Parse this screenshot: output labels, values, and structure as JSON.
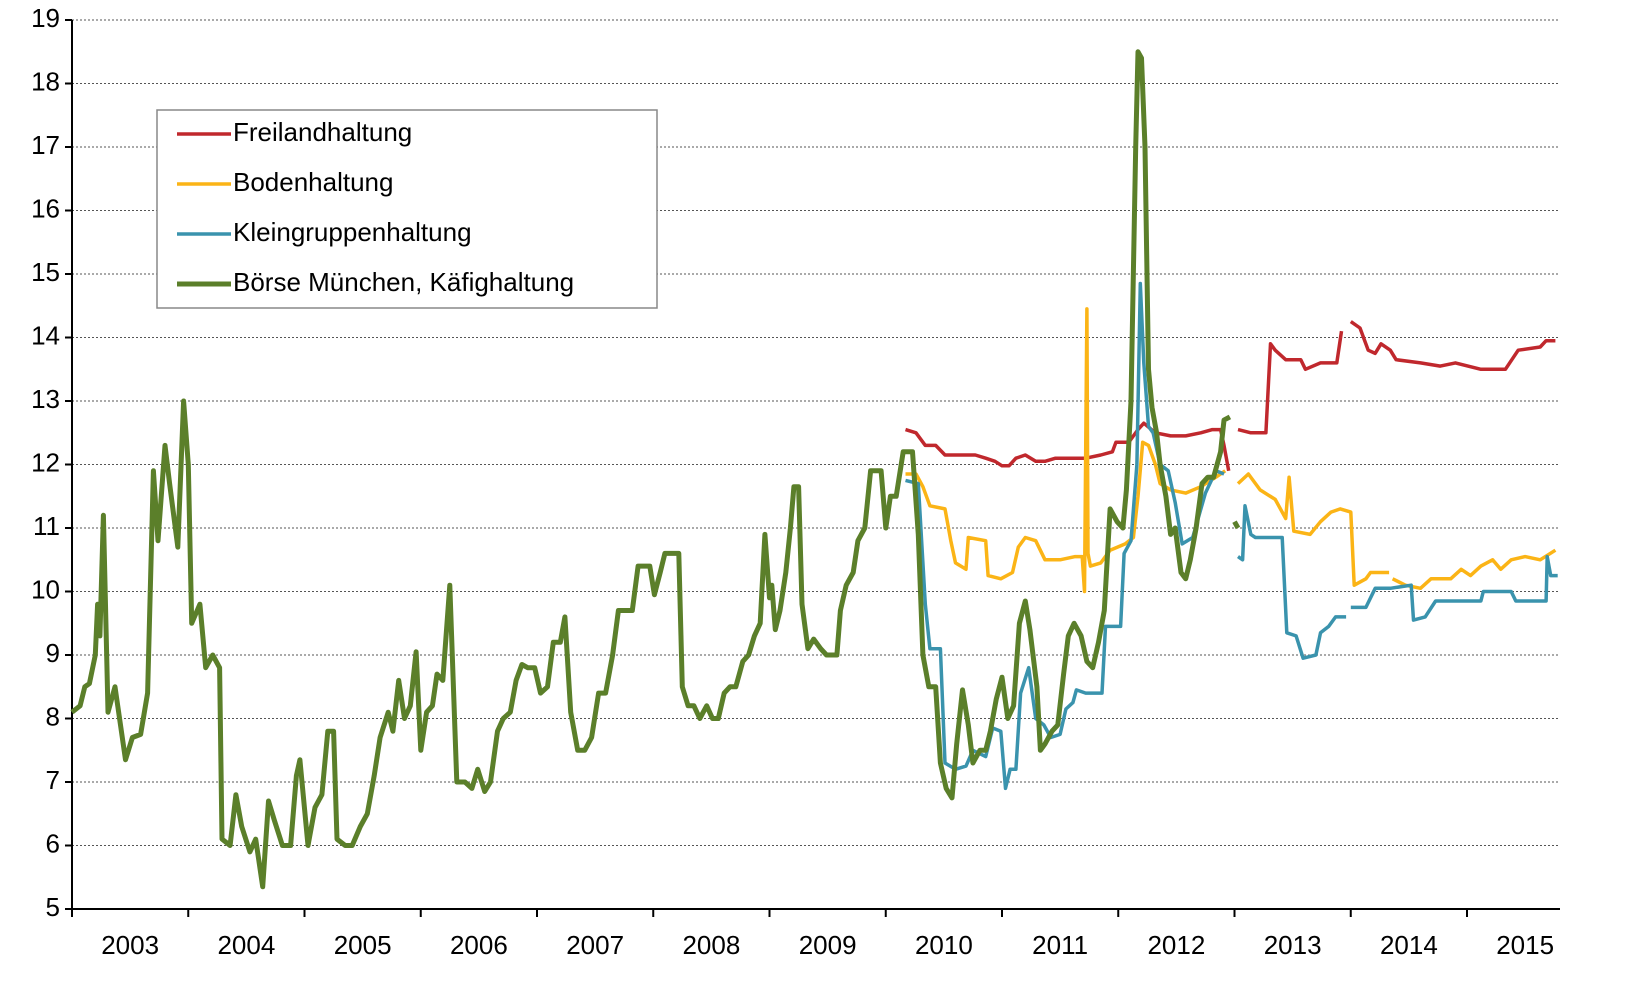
{
  "chart_data": {
    "type": "line",
    "xlim": [
      2003,
      2015.8
    ],
    "xticks": [
      2003,
      2004,
      2005,
      2006,
      2007,
      2008,
      2009,
      2010,
      2011,
      2012,
      2013,
      2014,
      2015
    ],
    "ylim": [
      5,
      19
    ],
    "yticks": [
      5,
      6,
      7,
      8,
      9,
      10,
      11,
      12,
      13,
      14,
      15,
      16,
      17,
      18,
      19
    ],
    "grid": true,
    "legend": "upper left",
    "series": [
      {
        "name": "Freilandhaltung",
        "color": "#c0282d",
        "x": [
          2010.17,
          2010.26,
          2010.34,
          2010.43,
          2010.51,
          2010.6,
          2010.69,
          2010.77,
          2010.86,
          2010.94,
          2011.0,
          2011.06,
          2011.12,
          2011.2,
          2011.29,
          2011.37,
          2011.46,
          2011.59,
          2011.72,
          2011.85,
          2011.95,
          2011.98,
          2012.09,
          2012.17,
          2012.22,
          2012.32,
          2012.45,
          2012.58,
          2012.71,
          2012.81,
          2012.88,
          2012.91,
          2012.95,
          2012.99,
          2013.03,
          2013.14,
          2013.27,
          2013.31,
          2013.35,
          2013.44,
          2013.57,
          2013.61,
          2013.74,
          2013.88,
          2013.92,
          2013.95,
          2014.0,
          2014.08,
          2014.15,
          2014.21,
          2014.26,
          2014.34,
          2014.39,
          2014.6,
          2014.77,
          2014.9,
          2015.12,
          2015.33,
          2015.44,
          2015.63,
          2015.68,
          2015.76
        ],
        "values": [
          12.55,
          12.5,
          12.3,
          12.3,
          12.15,
          12.15,
          12.15,
          12.15,
          12.1,
          12.05,
          11.98,
          11.98,
          12.1,
          12.15,
          12.05,
          12.05,
          12.1,
          12.1,
          12.1,
          12.15,
          12.2,
          12.35,
          12.35,
          12.55,
          12.65,
          12.5,
          12.45,
          12.45,
          12.5,
          12.55,
          12.55,
          12.3,
          11.9,
          null,
          12.55,
          12.5,
          12.5,
          13.9,
          13.8,
          13.65,
          13.65,
          13.5,
          13.6,
          13.6,
          14.1,
          null,
          14.25,
          14.15,
          13.8,
          13.75,
          13.9,
          13.8,
          13.65,
          13.6,
          13.55,
          13.6,
          13.5,
          13.5,
          13.8,
          13.85,
          13.95,
          13.95
        ]
      },
      {
        "name": "Bodenhaltung",
        "color": "#fbb416",
        "x": [
          2010.17,
          2010.26,
          2010.32,
          2010.38,
          2010.51,
          2010.56,
          2010.6,
          2010.69,
          2010.71,
          2010.86,
          2010.88,
          2010.99,
          2011.09,
          2011.14,
          2011.2,
          2011.29,
          2011.37,
          2011.5,
          2011.63,
          2011.69,
          2011.71,
          2011.73,
          2011.74,
          2011.76,
          2011.85,
          2011.93,
          2012.06,
          2012.13,
          2012.17,
          2012.21,
          2012.26,
          2012.32,
          2012.36,
          2012.45,
          2012.58,
          2012.71,
          2012.84,
          2012.92,
          2012.98,
          2013.03,
          2013.12,
          2013.22,
          2013.35,
          2013.44,
          2013.47,
          2013.51,
          2013.65,
          2013.74,
          2013.83,
          2013.91,
          2014.0,
          2014.03,
          2014.13,
          2014.17,
          2014.33,
          2014.35,
          2014.36,
          2014.47,
          2014.6,
          2014.69,
          2014.86,
          2014.95,
          2015.03,
          2015.12,
          2015.22,
          2015.29,
          2015.38,
          2015.5,
          2015.63,
          2015.76
        ],
        "values": [
          11.85,
          11.85,
          11.65,
          11.35,
          11.3,
          10.8,
          10.45,
          10.35,
          10.85,
          10.8,
          10.25,
          10.2,
          10.3,
          10.7,
          10.85,
          10.8,
          10.5,
          10.5,
          10.55,
          10.55,
          10.0,
          14.45,
          10.6,
          10.4,
          10.45,
          10.65,
          10.75,
          10.85,
          11.5,
          12.35,
          12.3,
          12.0,
          11.7,
          11.6,
          11.55,
          11.65,
          11.8,
          11.9,
          null,
          11.7,
          11.85,
          11.6,
          11.45,
          11.15,
          11.8,
          10.95,
          10.9,
          11.1,
          11.25,
          11.3,
          11.25,
          10.1,
          10.2,
          10.3,
          10.3,
          null,
          10.2,
          10.1,
          10.05,
          10.2,
          10.2,
          10.35,
          10.25,
          10.4,
          10.5,
          10.35,
          10.5,
          10.55,
          10.5,
          10.65
        ]
      },
      {
        "name": "Kleingruppenhaltung",
        "color": "#3a93ad",
        "x": [
          2010.17,
          2010.28,
          2010.34,
          2010.38,
          2010.47,
          2010.51,
          2010.6,
          2010.69,
          2010.75,
          2010.86,
          2010.92,
          2010.99,
          2011.03,
          2011.07,
          2011.12,
          2011.16,
          2011.23,
          2011.29,
          2011.36,
          2011.42,
          2011.5,
          2011.55,
          2011.61,
          2011.64,
          2011.72,
          2011.86,
          2011.89,
          2012.02,
          2012.05,
          2012.11,
          2012.16,
          2012.19,
          2012.22,
          2012.26,
          2012.3,
          2012.36,
          2012.43,
          2012.49,
          2012.55,
          2012.64,
          2012.75,
          2012.84,
          2012.91,
          2012.98,
          2013.03,
          2013.07,
          2013.09,
          2013.14,
          2013.18,
          2013.31,
          2013.41,
          2013.45,
          2013.53,
          2013.59,
          2013.7,
          2013.74,
          2013.81,
          2013.87,
          2013.96,
          2013.98,
          2014.0,
          2014.13,
          2014.21,
          2014.34,
          2014.52,
          2014.54,
          2014.64,
          2014.73,
          2014.82,
          2015.12,
          2015.14,
          2015.38,
          2015.42,
          2015.68,
          2015.69,
          2015.72,
          2015.78
        ],
        "values": [
          11.75,
          11.7,
          9.8,
          9.1,
          9.1,
          7.3,
          7.2,
          7.25,
          7.5,
          7.4,
          7.85,
          7.8,
          6.9,
          7.2,
          7.2,
          8.4,
          8.8,
          8.0,
          7.9,
          7.7,
          7.75,
          8.15,
          8.25,
          8.45,
          8.4,
          8.4,
          9.45,
          9.45,
          10.6,
          10.8,
          12.0,
          14.85,
          13.6,
          12.6,
          12.5,
          12.0,
          11.9,
          11.4,
          10.75,
          10.85,
          11.55,
          11.9,
          11.85,
          null,
          10.55,
          10.5,
          11.35,
          10.9,
          10.85,
          10.85,
          10.85,
          9.35,
          9.3,
          8.95,
          9.0,
          9.35,
          9.45,
          9.6,
          9.6,
          null,
          9.75,
          9.75,
          10.05,
          10.05,
          10.1,
          9.55,
          9.6,
          9.85,
          9.85,
          9.85,
          10.0,
          10.0,
          9.85,
          9.85,
          10.55,
          10.25,
          10.25
        ]
      },
      {
        "name": "Börse München, Käfighaltung",
        "color": "#5b7f2a",
        "x": [
          2003.0,
          2003.07,
          2003.11,
          2003.15,
          2003.2,
          2003.22,
          2003.24,
          2003.27,
          2003.31,
          2003.37,
          2003.46,
          2003.52,
          2003.59,
          2003.65,
          2003.7,
          2003.74,
          2003.8,
          2003.84,
          2003.91,
          2003.96,
          2004.0,
          2004.03,
          2004.1,
          2004.15,
          2004.21,
          2004.27,
          2004.29,
          2004.36,
          2004.41,
          2004.46,
          2004.53,
          2004.58,
          2004.64,
          2004.69,
          2004.74,
          2004.81,
          2004.88,
          2004.93,
          2004.96,
          2005.03,
          2005.09,
          2005.15,
          2005.2,
          2005.25,
          2005.28,
          2005.35,
          2005.41,
          2005.48,
          2005.54,
          2005.6,
          2005.65,
          2005.72,
          2005.76,
          2005.81,
          2005.86,
          2005.91,
          2005.96,
          2006.0,
          2006.05,
          2006.1,
          2006.14,
          2006.19,
          2006.25,
          2006.31,
          2006.38,
          2006.44,
          2006.49,
          2006.55,
          2006.6,
          2006.66,
          2006.71,
          2006.77,
          2006.82,
          2006.87,
          2006.92,
          2006.98,
          2007.03,
          2007.09,
          2007.14,
          2007.2,
          2007.24,
          2007.29,
          2007.35,
          2007.41,
          2007.47,
          2007.53,
          2007.59,
          2007.65,
          2007.7,
          2007.76,
          2007.82,
          2007.87,
          2007.91,
          2007.97,
          2008.01,
          2008.06,
          2008.1,
          2008.22,
          2008.25,
          2008.3,
          2008.35,
          2008.4,
          2008.46,
          2008.51,
          2008.56,
          2008.61,
          2008.66,
          2008.71,
          2008.77,
          2008.82,
          2008.87,
          2008.92,
          2008.96,
          2009.0,
          2009.02,
          2009.05,
          2009.09,
          2009.14,
          2009.18,
          2009.21,
          2009.25,
          2009.28,
          2009.33,
          2009.38,
          2009.44,
          2009.49,
          2009.58,
          2009.61,
          2009.66,
          2009.72,
          2009.76,
          2009.82,
          2009.87,
          2009.91,
          2009.96,
          2010.0,
          2010.04,
          2010.09,
          2010.15,
          2010.23,
          2010.28,
          2010.32,
          2010.37,
          2010.43,
          2010.47,
          2010.52,
          2010.57,
          2010.61,
          2010.66,
          2010.71,
          2010.75,
          2010.81,
          2010.86,
          2010.9,
          2010.95,
          2011.0,
          2011.05,
          2011.1,
          2011.15,
          2011.2,
          2011.24,
          2011.3,
          2011.33,
          2011.37,
          2011.43,
          2011.48,
          2011.53,
          2011.57,
          2011.62,
          2011.68,
          2011.73,
          2011.78,
          2011.83,
          2011.88,
          2011.93,
          2011.99,
          2012.04,
          2012.07,
          2012.11,
          2012.15,
          2012.17,
          2012.2,
          2012.23,
          2012.26,
          2012.29,
          2012.33,
          2012.36,
          2012.41,
          2012.45,
          2012.49,
          2012.54,
          2012.58,
          2012.62,
          2012.67,
          2012.72,
          2012.77,
          2012.82,
          2012.88,
          2012.91,
          2012.96,
          2012.98,
          2013.0,
          2013.03
        ],
        "values": [
          8.1,
          8.2,
          8.5,
          8.55,
          9.0,
          9.8,
          9.3,
          11.2,
          8.1,
          8.5,
          7.35,
          7.7,
          7.75,
          8.4,
          11.9,
          10.8,
          12.3,
          11.7,
          10.7,
          13.0,
          12.0,
          9.5,
          9.8,
          8.8,
          9.0,
          8.8,
          6.1,
          6.0,
          6.8,
          6.3,
          5.9,
          6.1,
          5.35,
          6.7,
          6.4,
          6.0,
          6.0,
          7.1,
          7.35,
          6.0,
          6.6,
          6.8,
          7.8,
          7.8,
          6.1,
          6.0,
          6.0,
          6.3,
          6.5,
          7.1,
          7.7,
          8.1,
          7.8,
          8.6,
          8.0,
          8.2,
          9.05,
          7.5,
          8.1,
          8.2,
          8.7,
          8.6,
          10.1,
          7.0,
          7.0,
          6.9,
          7.2,
          6.85,
          7.0,
          7.8,
          8.0,
          8.1,
          8.6,
          8.85,
          8.8,
          8.8,
          8.4,
          8.5,
          9.2,
          9.2,
          9.6,
          8.1,
          7.5,
          7.5,
          7.7,
          8.4,
          8.4,
          9.0,
          9.7,
          9.7,
          9.7,
          10.4,
          10.4,
          10.4,
          9.95,
          10.3,
          10.6,
          10.6,
          8.5,
          8.2,
          8.2,
          8.0,
          8.2,
          8.0,
          8.0,
          8.4,
          8.5,
          8.5,
          8.9,
          9.0,
          9.3,
          9.5,
          10.9,
          9.9,
          10.1,
          9.4,
          9.7,
          10.3,
          11.0,
          11.65,
          11.65,
          9.8,
          9.1,
          9.25,
          9.1,
          9.0,
          9.0,
          9.7,
          10.1,
          10.3,
          10.8,
          11.0,
          11.9,
          11.9,
          11.9,
          11.0,
          11.5,
          11.5,
          12.2,
          12.2,
          10.9,
          9.0,
          8.5,
          8.5,
          7.3,
          6.9,
          6.75,
          7.6,
          8.45,
          7.9,
          7.3,
          7.5,
          7.5,
          7.8,
          8.3,
          8.65,
          8.0,
          8.2,
          9.5,
          9.85,
          9.4,
          8.5,
          7.5,
          7.6,
          7.8,
          7.9,
          8.7,
          9.3,
          9.5,
          9.3,
          8.9,
          8.8,
          9.2,
          9.7,
          11.3,
          11.1,
          11.0,
          11.6,
          13.0,
          17.0,
          18.5,
          18.4,
          17.0,
          13.5,
          12.9,
          12.5,
          12.0,
          11.5,
          10.9,
          11.0,
          10.3,
          10.2,
          10.5,
          11.0,
          11.7,
          11.8,
          11.8,
          12.2,
          12.7,
          12.75,
          null,
          11.1,
          11.0
        ]
      }
    ]
  }
}
